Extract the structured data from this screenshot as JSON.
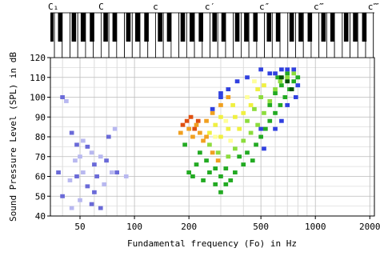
{
  "chart_data": {
    "type": "scatter",
    "xlabel": "Fundamental frequency (Fo) in Hz",
    "ylabel": "Sound Pressure Level (SPL) in dB",
    "notes": [
      "C₁",
      "C",
      "c",
      "c′",
      "c″",
      "c‴",
      "c⁗"
    ],
    "log_x": true,
    "grid": true,
    "xlim": [
      34.3,
      2120
    ],
    "ylim": [
      40,
      120
    ],
    "xticks": [
      50,
      100,
      200,
      500,
      1000,
      2000
    ],
    "xminorticks": [
      40,
      60,
      70,
      80,
      90,
      300,
      400,
      600,
      700,
      800,
      900
    ],
    "yticks": [
      40,
      50,
      60,
      70,
      80,
      90,
      100,
      110,
      120
    ],
    "yminorticks": [
      45,
      55,
      65,
      75,
      85,
      95,
      105,
      115
    ],
    "series": [
      {
        "color": "#6a6ad8",
        "x": [
          40,
          45,
          48,
          55,
          60,
          70,
          38,
          62,
          80,
          55,
          60,
          40,
          58,
          65,
          72,
          48
        ],
        "y": [
          100,
          82,
          76,
          75,
          66,
          68,
          62,
          60,
          62,
          55,
          52,
          50,
          46,
          44,
          80,
          60
        ]
      },
      {
        "color": "#b8b8f0",
        "x": [
          42,
          52,
          50,
          47,
          58,
          65,
          52,
          75,
          44,
          68,
          50,
          45,
          78,
          90
        ],
        "y": [
          98,
          78,
          70,
          68,
          72,
          70,
          62,
          62,
          58,
          56,
          48,
          44,
          84,
          60
        ]
      },
      {
        "color": "#22aa22",
        "x": [
          200,
          210,
          220,
          240,
          260,
          280,
          300,
          320,
          340,
          360,
          380,
          400,
          420,
          450,
          470,
          500,
          530,
          560,
          600,
          640,
          680,
          720,
          760,
          800,
          700,
          650,
          600,
          560,
          620,
          300,
          320,
          280,
          250,
          230,
          190
        ],
        "y": [
          62,
          60,
          66,
          58,
          62,
          56,
          60,
          64,
          58,
          62,
          70,
          66,
          72,
          68,
          76,
          80,
          84,
          88,
          92,
          96,
          100,
          104,
          108,
          110,
          112,
          106,
          102,
          96,
          110,
          52,
          56,
          64,
          68,
          72,
          76
        ]
      },
      {
        "color": "#8cdc3c",
        "x": [
          260,
          290,
          330,
          360,
          400,
          440,
          480,
          520,
          560,
          600,
          640,
          700,
          760,
          420,
          460,
          500
        ],
        "y": [
          76,
          72,
          70,
          74,
          78,
          82,
          86,
          92,
          98,
          104,
          108,
          110,
          112,
          88,
          94,
          100
        ]
      },
      {
        "color": "#f0f040",
        "x": [
          260,
          280,
          300,
          330,
          360,
          400,
          440,
          480,
          520,
          350,
          300,
          380
        ],
        "y": [
          82,
          86,
          80,
          84,
          90,
          92,
          96,
          104,
          106,
          96,
          90,
          84
        ]
      },
      {
        "color": "#ffff99",
        "x": [
          280,
          320,
          340,
          420,
          460
        ],
        "y": [
          80,
          88,
          78,
          100,
          108
        ]
      },
      {
        "color": "#f0a020",
        "x": [
          200,
          210,
          220,
          240,
          250,
          270,
          300,
          330,
          250,
          230,
          270,
          290,
          180
        ],
        "y": [
          84,
          80,
          86,
          78,
          88,
          92,
          96,
          100,
          80,
          82,
          72,
          68,
          82
        ]
      },
      {
        "color": "#e05010",
        "x": [
          185,
          195,
          205,
          215,
          225
        ],
        "y": [
          86,
          88,
          90,
          84,
          88
        ]
      },
      {
        "color": "#3040e0",
        "x": [
          270,
          300,
          330,
          370,
          420,
          500,
          560,
          600,
          650,
          700,
          760,
          800,
          780,
          600,
          650,
          700,
          500,
          520,
          300
        ],
        "y": [
          94,
          102,
          104,
          108,
          110,
          114,
          112,
          112,
          114,
          114,
          114,
          106,
          100,
          84,
          88,
          96,
          84,
          74,
          100
        ]
      },
      {
        "color": "#005000",
        "x": [
          700,
          740,
          650
        ],
        "y": [
          108,
          104,
          110
        ]
      }
    ]
  }
}
